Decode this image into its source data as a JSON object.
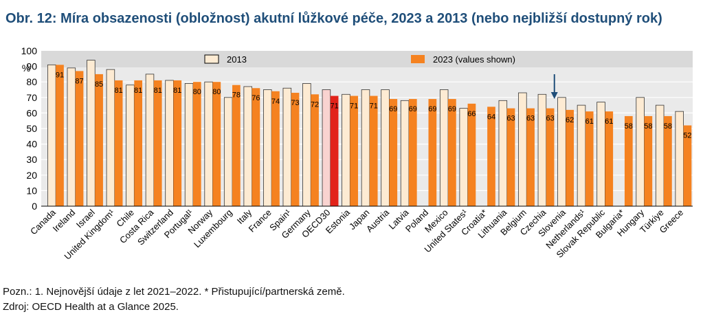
{
  "title": "Obr. 12: Míra obsazenosti (obložnost) akutní lůžkové péče, 2023 a 2013 (nebo nejbližší dostupný rok)",
  "notes": {
    "note": "Pozn.: 1. Nejnovější údaje z let 2021–2022. * Přistupující/partnerská země.",
    "source": "Zdroj: OECD Health at a Glance 2025."
  },
  "colors": {
    "bar_2023": "#f58220",
    "bar_2013": "#fdebd3",
    "highlight": "#e2231a",
    "highlight_2013": "#f9d3d0",
    "plot_bg": "#eaeaea",
    "legend_bg": "#d9d9d9",
    "arrow": "#1f4e79"
  },
  "chart_data": {
    "type": "bar",
    "ylabel": "%",
    "ylim": [
      0,
      100
    ],
    "yticks": [
      0,
      10,
      20,
      30,
      40,
      50,
      60,
      70,
      80,
      90,
      100
    ],
    "legend_position": "top",
    "grid": true,
    "highlight_category": "OECD30",
    "arrow_category": "Slovenia",
    "categories": [
      "Canada",
      "Ireland",
      "Israel",
      "United Kingdom¹",
      "Chile",
      "Costa Rica",
      "Switzerland",
      "Portugal¹",
      "Norway",
      "Luxembourg",
      "Italy",
      "France",
      "Spain¹",
      "Germany",
      "OECD30",
      "Estonia",
      "Japan",
      "Austria",
      "Latvia",
      "Poland",
      "Mexico",
      "United States¹",
      "Croatia*",
      "Lithuania",
      "Belgium",
      "Czechia",
      "Slovenia",
      "Netherlands¹",
      "Slovak Republic",
      "Bulgaria*",
      "Hungary",
      "Türkiye",
      "Greece"
    ],
    "series": [
      {
        "name": "2013",
        "values": [
          91,
          89,
          94,
          88,
          78,
          85,
          81,
          79,
          80,
          70,
          77,
          75,
          76,
          79,
          75,
          72,
          75,
          75,
          68,
          null,
          75,
          63,
          null,
          68,
          73,
          72,
          70,
          65,
          67,
          null,
          70,
          65,
          61
        ]
      },
      {
        "name": "2023 (values shown)",
        "values": [
          91,
          87,
          85,
          81,
          81,
          81,
          81,
          80,
          80,
          78,
          76,
          74,
          73,
          72,
          71,
          71,
          71,
          69,
          69,
          69,
          69,
          66,
          64,
          63,
          63,
          63,
          62,
          61,
          61,
          58,
          58,
          58,
          52
        ]
      }
    ]
  }
}
